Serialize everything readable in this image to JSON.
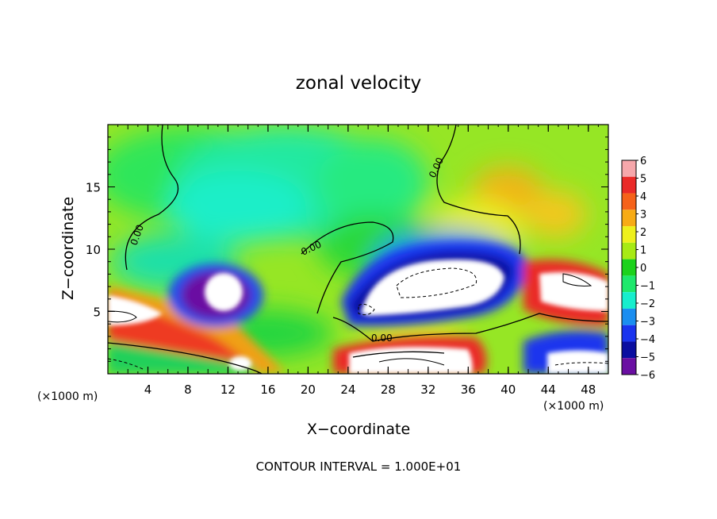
{
  "chart_data": {
    "type": "heatmap",
    "title": "zonal velocity",
    "xlabel": "X−coordinate",
    "ylabel": "Z−coordinate",
    "x_unit_left": "(×1000 m)",
    "x_unit_right": "(×1000 m)",
    "footer": "CONTOUR INTERVAL = 1.000E+01",
    "xlim": [
      0,
      50
    ],
    "ylim": [
      0,
      20
    ],
    "x_ticks": [
      4,
      8,
      12,
      16,
      20,
      24,
      28,
      32,
      36,
      40,
      44,
      48
    ],
    "x_tick_labels": [
      "4",
      "8",
      "12",
      "16",
      "20",
      "24",
      "28",
      "32",
      "36",
      "40",
      "44",
      "48"
    ],
    "y_ticks": [
      5,
      10,
      15
    ],
    "y_tick_labels": [
      "5",
      "10",
      "15"
    ],
    "contour_labels": [
      "0.00",
      "0.00",
      "0.00",
      "0.00"
    ],
    "colorbar": {
      "range": [
        -6,
        6
      ],
      "tick_labels": [
        "6",
        "5",
        "4",
        "3",
        "2",
        "1",
        "0",
        "−1",
        "−2",
        "−3",
        "−4",
        "−5",
        "−6"
      ],
      "colors": [
        "#f6a7ab",
        "#ea2a28",
        "#f5621a",
        "#f7ab16",
        "#eef01c",
        "#a8ea15",
        "#1cd21c",
        "#1ee86c",
        "#17eecd",
        "#1b8ef0",
        "#1a34ee",
        "#0b0ea0",
        "#6a0fa2"
      ]
    }
  }
}
